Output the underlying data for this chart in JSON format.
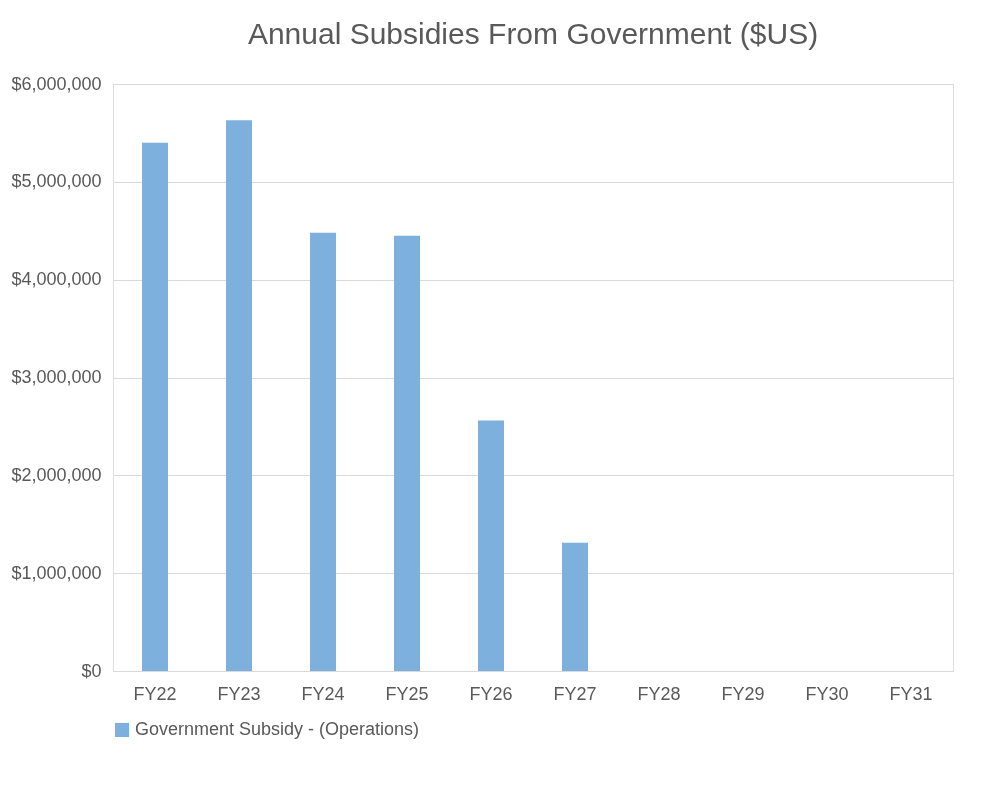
{
  "chart_data": {
    "type": "bar",
    "title": "Annual Subsidies From Government ($US)",
    "categories": [
      "FY22",
      "FY23",
      "FY24",
      "FY25",
      "FY26",
      "FY27",
      "FY28",
      "FY29",
      "FY30",
      "FY31"
    ],
    "series": [
      {
        "name": "Government Subsidy - (Operations)",
        "color": "#7eb0de",
        "values": [
          5400000,
          5630000,
          4480000,
          4450000,
          2560000,
          1310000,
          0,
          0,
          0,
          0
        ]
      }
    ],
    "ylim": [
      0,
      6000000
    ],
    "yticks": [
      {
        "value": 0,
        "label": "$0"
      },
      {
        "value": 1000000,
        "label": "$1,000,000"
      },
      {
        "value": 2000000,
        "label": "$2,000,000"
      },
      {
        "value": 3000000,
        "label": "$3,000,000"
      },
      {
        "value": 4000000,
        "label": "$4,000,000"
      },
      {
        "value": 5000000,
        "label": "$5,000,000"
      },
      {
        "value": 6000000,
        "label": "$6,000,000"
      }
    ],
    "grid": "y",
    "legend": "bottom"
  }
}
